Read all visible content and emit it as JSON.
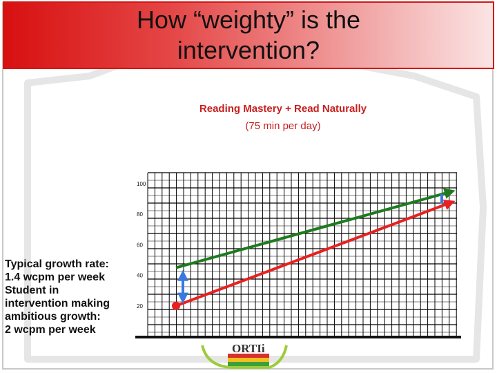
{
  "title": "How “weighty” is the\nintervention?",
  "subtitle_line1": "Reading Mastery + Read Naturally",
  "subtitle_line2": "(75 min per day)",
  "notes": {
    "typical_label": "Typical growth rate:",
    "typical_rate": "1.4 wcpm per week",
    "student_line1": "Student in",
    "student_line2": "intervention making",
    "student_line3": "ambitious growth:",
    "student_rate": "2 wcpm per week"
  },
  "logo_text": "ORTIi",
  "colors": {
    "title_red": "#d81010",
    "typical_line": "#1e7a1e",
    "ambitious_line": "#e82020",
    "gap_arrow": "#3a78e0",
    "subtitle": "#c81e1e"
  },
  "chart_data": {
    "type": "line",
    "ylim": [
      0,
      100
    ],
    "y_ticks": [
      "100",
      "80",
      "60",
      "40",
      "20"
    ],
    "series": [
      {
        "key": "typical",
        "values": [
          [
            0,
            45
          ],
          [
            40,
            95
          ]
        ]
      },
      {
        "key": "ambitious",
        "values": [
          [
            0,
            20
          ],
          [
            40,
            88
          ]
        ]
      }
    ]
  }
}
